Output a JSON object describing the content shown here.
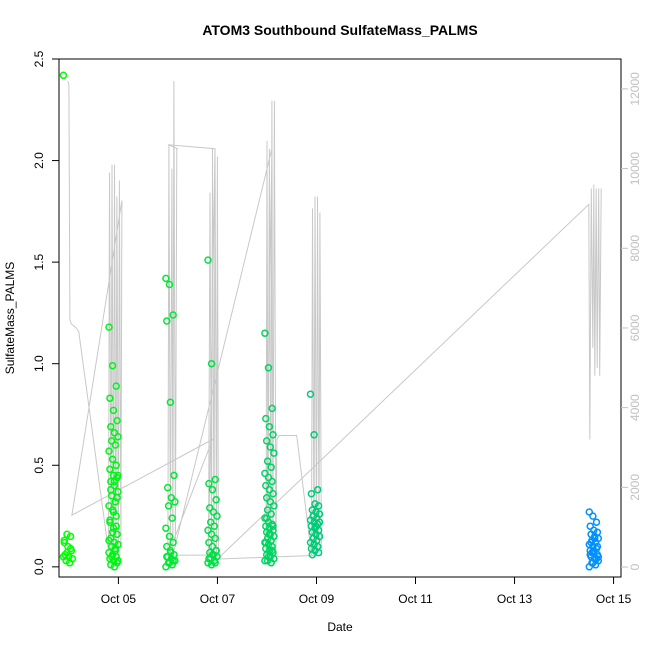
{
  "chart_data": {
    "type": "scatter",
    "title": "ATOM3 Southbound SulfateMass_PALMS",
    "xlabel": "Date",
    "ylabel": "SulfateMass_PALMS",
    "x_unit": "days in October 2017",
    "xlim": [
      3.8,
      15.15
    ],
    "ylim": [
      -0.05,
      2.5
    ],
    "y2lim": [
      -250,
      12750
    ],
    "x_ticks": [
      5,
      7,
      9,
      11,
      13,
      15
    ],
    "x_tick_labels": [
      "Oct 05",
      "Oct 07",
      "Oct 09",
      "Oct 11",
      "Oct 13",
      "Oct 15"
    ],
    "y_ticks": [
      0.0,
      0.5,
      1.0,
      1.5,
      2.0,
      2.5
    ],
    "y_tick_labels": [
      "0.0",
      "0.5",
      "1.0",
      "1.5",
      "2.0",
      "2.5"
    ],
    "y2_ticks": [
      0,
      2000,
      4000,
      6000,
      8000,
      10000,
      12000
    ],
    "y2_tick_labels": [
      "0",
      "2000",
      "4000",
      "6000",
      "8000",
      "10000",
      "12000"
    ],
    "grid": false,
    "legend": "none",
    "colors": {
      "points_start": "#00ff00",
      "points_end": "#0090ff",
      "altitude_line": "#c8c8c8",
      "right_axis": "#c0c0c0"
    },
    "series": [
      {
        "kind": "points",
        "groups": [
          {
            "x": 3.98,
            "values": [
              2.42,
              0.16,
              0.15,
              0.12,
              0.1,
              0.08,
              0.06,
              0.05,
              0.04,
              0.03,
              0.02,
              0.05,
              0.07,
              0.09,
              0.13
            ]
          },
          {
            "x": 4.9,
            "values": [
              1.18,
              0.99,
              0.89,
              0.83,
              0.77,
              0.72,
              0.69,
              0.66,
              0.64,
              0.62,
              0.6,
              0.57,
              0.53,
              0.5,
              0.48,
              0.45,
              0.44,
              0.42,
              0.4,
              0.37,
              0.35,
              0.32,
              0.3,
              0.28,
              0.25,
              0.22,
              0.19,
              0.16,
              0.14,
              0.12,
              0.11,
              0.1,
              0.09,
              0.07,
              0.06,
              0.05,
              0.04,
              0.03,
              0.02,
              0.01,
              0.0,
              0.03,
              0.05,
              0.08,
              0.13,
              0.17,
              0.2,
              0.23,
              0.27,
              0.34,
              0.38,
              0.42,
              0.45
            ]
          },
          {
            "x": 6.05,
            "values": [
              1.42,
              1.39,
              1.24,
              1.21,
              0.81,
              0.45,
              0.39,
              0.34,
              0.32,
              0.3,
              0.24,
              0.19,
              0.15,
              0.12,
              0.1,
              0.08,
              0.06,
              0.05,
              0.04,
              0.03,
              0.02,
              0.01,
              0.0,
              0.02,
              0.03,
              0.05,
              0.07
            ]
          },
          {
            "x": 6.9,
            "values": [
              1.51,
              1.0,
              0.43,
              0.41,
              0.38,
              0.33,
              0.29,
              0.27,
              0.25,
              0.22,
              0.2,
              0.18,
              0.16,
              0.14,
              0.12,
              0.1,
              0.08,
              0.07,
              0.06,
              0.05,
              0.04,
              0.03,
              0.02,
              0.01,
              0.02,
              0.04,
              0.06,
              0.08
            ]
          },
          {
            "x": 8.05,
            "values": [
              1.15,
              0.98,
              0.78,
              0.73,
              0.69,
              0.65,
              0.62,
              0.59,
              0.56,
              0.52,
              0.49,
              0.46,
              0.44,
              0.42,
              0.4,
              0.38,
              0.36,
              0.34,
              0.32,
              0.3,
              0.28,
              0.26,
              0.24,
              0.22,
              0.21,
              0.2,
              0.19,
              0.18,
              0.17,
              0.16,
              0.15,
              0.14,
              0.13,
              0.12,
              0.11,
              0.1,
              0.09,
              0.08,
              0.07,
              0.06,
              0.05,
              0.04,
              0.03,
              0.02,
              0.03,
              0.05,
              0.08,
              0.12,
              0.16,
              0.2,
              0.24
            ]
          },
          {
            "x": 8.97,
            "values": [
              0.85,
              0.65,
              0.38,
              0.36,
              0.31,
              0.3,
              0.28,
              0.27,
              0.26,
              0.25,
              0.24,
              0.23,
              0.22,
              0.21,
              0.2,
              0.19,
              0.18,
              0.17,
              0.16,
              0.15,
              0.14,
              0.13,
              0.12,
              0.11,
              0.1,
              0.09,
              0.08,
              0.07,
              0.06,
              0.2,
              0.22,
              0.25
            ]
          },
          {
            "x": 14.6,
            "values": [
              0.27,
              0.25,
              0.22,
              0.2,
              0.18,
              0.17,
              0.16,
              0.15,
              0.14,
              0.13,
              0.12,
              0.11,
              0.1,
              0.09,
              0.08,
              0.07,
              0.06,
              0.05,
              0.04,
              0.03,
              0.02,
              0.01,
              0.0,
              0.02,
              0.04,
              0.06,
              0.08,
              0.1,
              0.12,
              0.14,
              0.05,
              0.07
            ]
          }
        ]
      },
      {
        "kind": "line",
        "axis": "right",
        "x": [
          3.98,
          4.0,
          4.02,
          4.05,
          4.1,
          4.15,
          4.2,
          4.8,
          4.82,
          4.85,
          4.87,
          4.9,
          4.92,
          4.95,
          4.97,
          5.0,
          5.02,
          5.05,
          5.07,
          4.06,
          6.9,
          6.0,
          6.02,
          6.05,
          6.08,
          6.1,
          6.12,
          6.15,
          6.18,
          6.2,
          6.0,
          6.95,
          6.82,
          6.85,
          6.88,
          6.9,
          6.93,
          6.95,
          6.98,
          7.0,
          7.02,
          6.1,
          8.1,
          7.98,
          8.0,
          8.02,
          8.05,
          8.08,
          8.1,
          8.12,
          8.15,
          8.18,
          8.2,
          8.25,
          8.6,
          8.9,
          8.92,
          8.95,
          8.97,
          9.0,
          9.02,
          9.05,
          9.07,
          9.1,
          7.0,
          14.5,
          14.52,
          14.55,
          14.58,
          14.6,
          14.62,
          14.65,
          14.67,
          14.7,
          14.72,
          14.75
        ],
        "values": [
          12200,
          12100,
          6200,
          6100,
          6050,
          6000,
          5900,
          400,
          9900,
          300,
          10100,
          200,
          10100,
          300,
          9300,
          200,
          9700,
          500,
          9200,
          1300,
          3200,
          300,
          10600,
          300,
          10000,
          300,
          12200,
          500,
          10500,
          10500,
          10600,
          10500,
          300,
          9400,
          300,
          10500,
          300,
          10500,
          300,
          10300,
          300,
          300,
          10500,
          300,
          10700,
          300,
          10500,
          300,
          11700,
          300,
          11700,
          300,
          3200,
          3300,
          3300,
          300,
          9000,
          300,
          9300,
          300,
          9300,
          400,
          8900,
          300,
          200,
          9100,
          3200,
          9500,
          5500,
          9600,
          4800,
          9500,
          5000,
          9500,
          4800,
          9500
        ]
      }
    ]
  }
}
